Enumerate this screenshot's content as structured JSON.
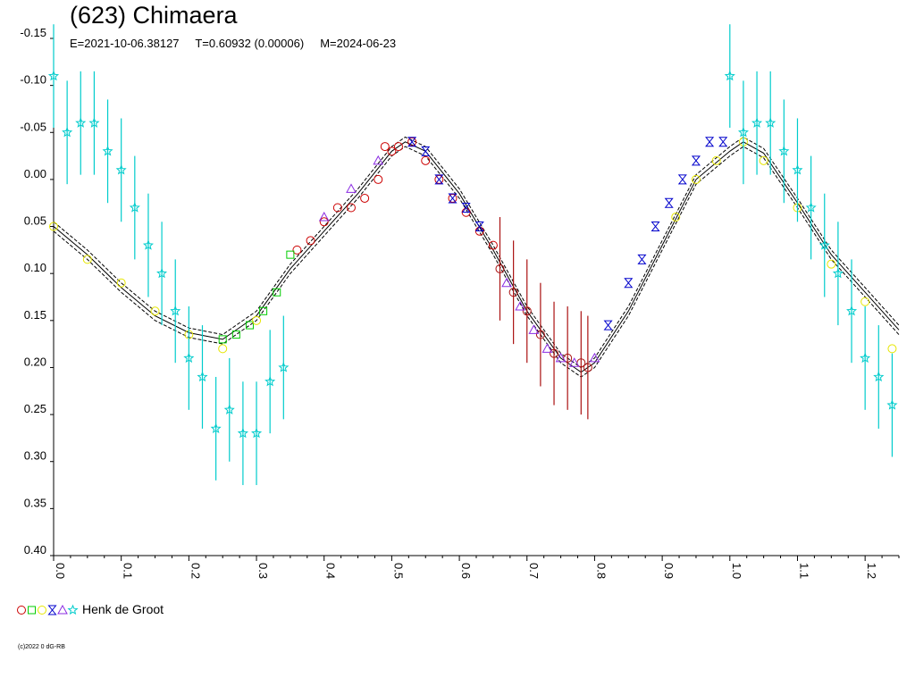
{
  "header": {
    "title": "(623) Chimaera",
    "epoch": "E=2021-10-06.38127",
    "period": "T=0.60932 (0.00006)",
    "modified": "M=2024-06-23"
  },
  "legend": {
    "observer": "Henk de Groot",
    "symbols": [
      {
        "shape": "circle",
        "color": "#cc0000"
      },
      {
        "shape": "square",
        "color": "#00cc00"
      },
      {
        "shape": "circle",
        "color": "#e6e600"
      },
      {
        "shape": "hourglass",
        "color": "#0000cc"
      },
      {
        "shape": "triangle",
        "color": "#8a2be2"
      },
      {
        "shape": "star",
        "color": "#00cccc"
      }
    ]
  },
  "footer": {
    "copyright": "(c)2022 0 dG-RB"
  },
  "chart_data": {
    "type": "scatter",
    "title": "(623) Chimaera",
    "xlim": [
      0.0,
      1.25
    ],
    "ylim": [
      -0.15,
      0.4
    ],
    "y_inverted": true,
    "x_ticks": [
      "0.0",
      "0.1",
      "0.2",
      "0.3",
      "0.4",
      "0.5",
      "0.6",
      "0.7",
      "0.8",
      "0.9",
      "1.0",
      "1.1",
      "1.2"
    ],
    "y_ticks": [
      "-0.15",
      "-0.10",
      "-0.05",
      "0.00",
      "0.05",
      "0.10",
      "0.15",
      "0.20",
      "0.25",
      "0.30",
      "0.35",
      "0.40"
    ],
    "fit_curve": [
      [
        0.0,
        0.05
      ],
      [
        0.05,
        0.08
      ],
      [
        0.1,
        0.115
      ],
      [
        0.15,
        0.145
      ],
      [
        0.2,
        0.163
      ],
      [
        0.25,
        0.17
      ],
      [
        0.3,
        0.145
      ],
      [
        0.35,
        0.095
      ],
      [
        0.4,
        0.055
      ],
      [
        0.45,
        0.015
      ],
      [
        0.5,
        -0.03
      ],
      [
        0.52,
        -0.04
      ],
      [
        0.55,
        -0.03
      ],
      [
        0.6,
        0.015
      ],
      [
        0.65,
        0.075
      ],
      [
        0.7,
        0.14
      ],
      [
        0.75,
        0.19
      ],
      [
        0.78,
        0.205
      ],
      [
        0.8,
        0.195
      ],
      [
        0.85,
        0.14
      ],
      [
        0.9,
        0.07
      ],
      [
        0.95,
        0.0
      ],
      [
        1.0,
        -0.03
      ],
      [
        1.02,
        -0.04
      ],
      [
        1.05,
        -0.028
      ],
      [
        1.1,
        0.025
      ],
      [
        1.15,
        0.08
      ],
      [
        1.2,
        0.12
      ],
      [
        1.25,
        0.16
      ]
    ],
    "series": [
      {
        "name": "red circles",
        "color": "#cc0000",
        "shape": "circle",
        "points": [
          [
            0.36,
            0.075
          ],
          [
            0.38,
            0.065
          ],
          [
            0.4,
            0.045
          ],
          [
            0.42,
            0.03
          ],
          [
            0.44,
            0.03
          ],
          [
            0.46,
            0.02
          ],
          [
            0.48,
            0.0
          ],
          [
            0.49,
            -0.035
          ],
          [
            0.5,
            -0.03
          ],
          [
            0.51,
            -0.035
          ],
          [
            0.53,
            -0.04
          ],
          [
            0.55,
            -0.02
          ],
          [
            0.57,
            0.0
          ],
          [
            0.59,
            0.02
          ],
          [
            0.61,
            0.035
          ],
          [
            0.63,
            0.055
          ],
          [
            0.65,
            0.07
          ]
        ]
      },
      {
        "name": "dark red",
        "color": "#aa1111",
        "shape": "circle",
        "points": [
          [
            0.66,
            0.095
          ],
          [
            0.68,
            0.12
          ],
          [
            0.7,
            0.14
          ],
          [
            0.72,
            0.165
          ],
          [
            0.74,
            0.185
          ],
          [
            0.76,
            0.19
          ],
          [
            0.78,
            0.195
          ],
          [
            0.79,
            0.2
          ]
        ]
      },
      {
        "name": "green squares",
        "color": "#00cc00",
        "shape": "square",
        "points": [
          [
            0.25,
            0.17
          ],
          [
            0.27,
            0.165
          ],
          [
            0.29,
            0.155
          ],
          [
            0.31,
            0.14
          ],
          [
            0.33,
            0.12
          ],
          [
            0.35,
            0.08
          ]
        ]
      },
      {
        "name": "yellow circles",
        "color": "#e6e600",
        "shape": "circle",
        "points": [
          [
            0.0,
            0.05
          ],
          [
            0.05,
            0.085
          ],
          [
            0.1,
            0.11
          ],
          [
            0.15,
            0.14
          ],
          [
            0.2,
            0.165
          ],
          [
            0.25,
            0.18
          ],
          [
            0.3,
            0.15
          ],
          [
            0.92,
            0.04
          ],
          [
            0.95,
            0.0
          ],
          [
            0.98,
            -0.02
          ],
          [
            1.02,
            -0.04
          ],
          [
            1.05,
            -0.02
          ],
          [
            1.1,
            0.03
          ],
          [
            1.15,
            0.09
          ],
          [
            1.2,
            0.13
          ],
          [
            1.24,
            0.18
          ]
        ]
      },
      {
        "name": "blue hourglass",
        "color": "#0000cc",
        "shape": "hourglass",
        "points": [
          [
            0.53,
            -0.04
          ],
          [
            0.55,
            -0.03
          ],
          [
            0.57,
            0.0
          ],
          [
            0.59,
            0.02
          ],
          [
            0.61,
            0.03
          ],
          [
            0.63,
            0.05
          ],
          [
            0.82,
            0.155
          ],
          [
            0.85,
            0.11
          ],
          [
            0.87,
            0.085
          ],
          [
            0.89,
            0.05
          ],
          [
            0.91,
            0.025
          ],
          [
            0.93,
            0.0
          ],
          [
            0.95,
            -0.02
          ],
          [
            0.97,
            -0.04
          ],
          [
            0.99,
            -0.04
          ]
        ]
      },
      {
        "name": "purple triangles",
        "color": "#8a2be2",
        "shape": "triangle",
        "points": [
          [
            0.4,
            0.04
          ],
          [
            0.44,
            0.01
          ],
          [
            0.48,
            -0.02
          ],
          [
            0.67,
            0.11
          ],
          [
            0.69,
            0.135
          ],
          [
            0.71,
            0.16
          ],
          [
            0.73,
            0.18
          ],
          [
            0.75,
            0.19
          ],
          [
            0.77,
            0.195
          ],
          [
            0.8,
            0.19
          ]
        ]
      },
      {
        "name": "cyan stars",
        "color": "#00cccc",
        "shape": "star",
        "points": [
          [
            0.0,
            -0.11
          ],
          [
            0.02,
            -0.05
          ],
          [
            0.04,
            -0.06
          ],
          [
            0.06,
            -0.06
          ],
          [
            0.08,
            -0.03
          ],
          [
            0.1,
            -0.01
          ],
          [
            0.12,
            0.03
          ],
          [
            0.14,
            0.07
          ],
          [
            0.16,
            0.1
          ],
          [
            0.18,
            0.14
          ],
          [
            0.2,
            0.19
          ],
          [
            0.22,
            0.21
          ],
          [
            0.24,
            0.265
          ],
          [
            0.26,
            0.245
          ],
          [
            0.28,
            0.27
          ],
          [
            0.3,
            0.27
          ],
          [
            0.32,
            0.215
          ],
          [
            0.34,
            0.2
          ],
          [
            1.0,
            -0.11
          ],
          [
            1.02,
            -0.05
          ],
          [
            1.04,
            -0.06
          ],
          [
            1.06,
            -0.06
          ],
          [
            1.08,
            -0.03
          ],
          [
            1.1,
            -0.01
          ],
          [
            1.12,
            0.03
          ],
          [
            1.14,
            0.07
          ],
          [
            1.16,
            0.1
          ],
          [
            1.18,
            0.14
          ],
          [
            1.2,
            0.19
          ],
          [
            1.22,
            0.21
          ],
          [
            1.24,
            0.24
          ]
        ]
      }
    ],
    "error_bars": [
      {
        "series": "cyan stars",
        "half_height": 0.055
      },
      {
        "series": "dark red",
        "half_height": 0.055
      }
    ]
  }
}
